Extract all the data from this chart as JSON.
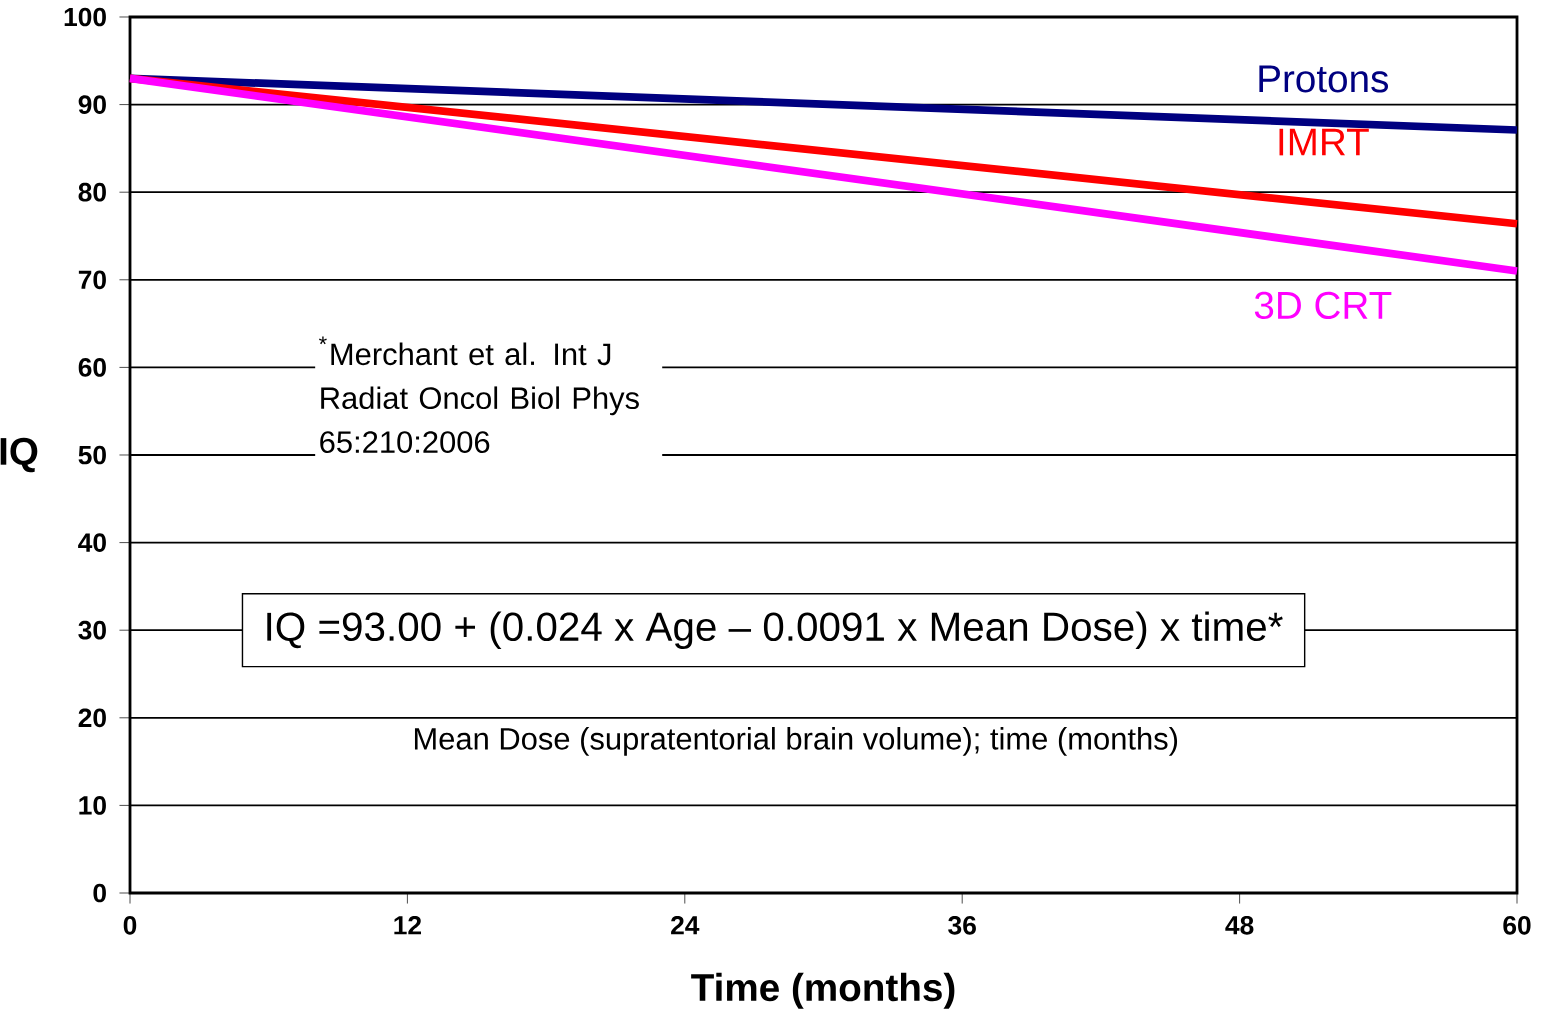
{
  "chart_data": {
    "type": "line",
    "xlabel": "Time (months)",
    "ylabel": "IQ",
    "x": [
      0,
      60
    ],
    "series": [
      {
        "name": "Protons",
        "color": "#000080",
        "values": [
          93,
          87.1
        ]
      },
      {
        "name": "IMRT",
        "color": "#ff0000",
        "values": [
          93,
          76.4
        ]
      },
      {
        "name": "3D CRT",
        "color": "#ff00ff",
        "values": [
          93,
          71
        ]
      }
    ],
    "xlim": [
      0,
      60
    ],
    "xticks": [
      0,
      12,
      24,
      36,
      48,
      60
    ],
    "ylim": [
      0,
      100
    ],
    "yticks": [
      0,
      10,
      20,
      30,
      40,
      50,
      60,
      70,
      80,
      90,
      100
    ],
    "grid": "y",
    "legend": false,
    "marker": "none",
    "line_style": "solid",
    "annotations": [
      "$^{*}$Merchant et al.  Int J Radiat Oncol Biol Phys 65:210:2006",
      "IQ =93.00 + (0.024 x Age – 0.0091 x Mean Dose) x time*",
      "Mean Dose (supratentorial brain volume); time (months)"
    ]
  }
}
